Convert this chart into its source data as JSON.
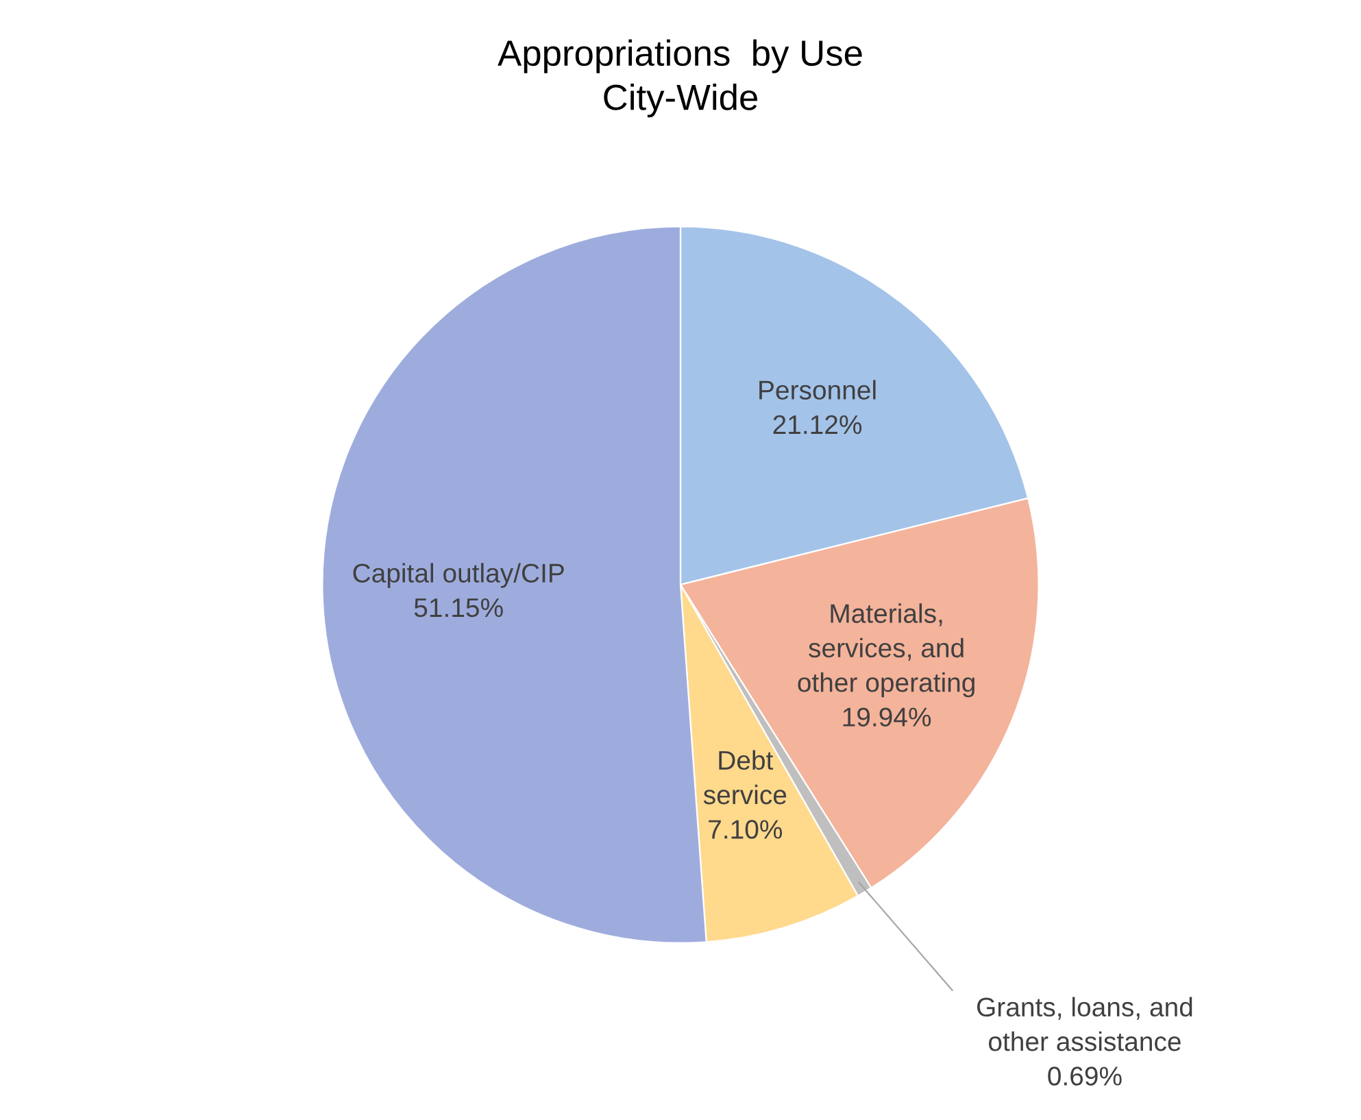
{
  "chart_data": {
    "type": "pie",
    "title": "Appropriations  by Use\nCity-Wide",
    "categories": [
      "Personnel",
      "Materials,\nservices, and\nother operating",
      "Grants, loans, and\nother assistance",
      "Debt\nservice",
      "Capital outlay/CIP"
    ],
    "values": [
      21.12,
      19.94,
      0.69,
      7.1,
      51.15
    ],
    "value_labels": [
      "21.12%",
      "19.94%",
      "0.69%",
      "7.10%",
      "51.15%"
    ],
    "colors": [
      "#a4c3e9",
      "#f4b39b",
      "#bfbfbf",
      "#ffd98c",
      "#9eacdd"
    ],
    "legend": false
  }
}
